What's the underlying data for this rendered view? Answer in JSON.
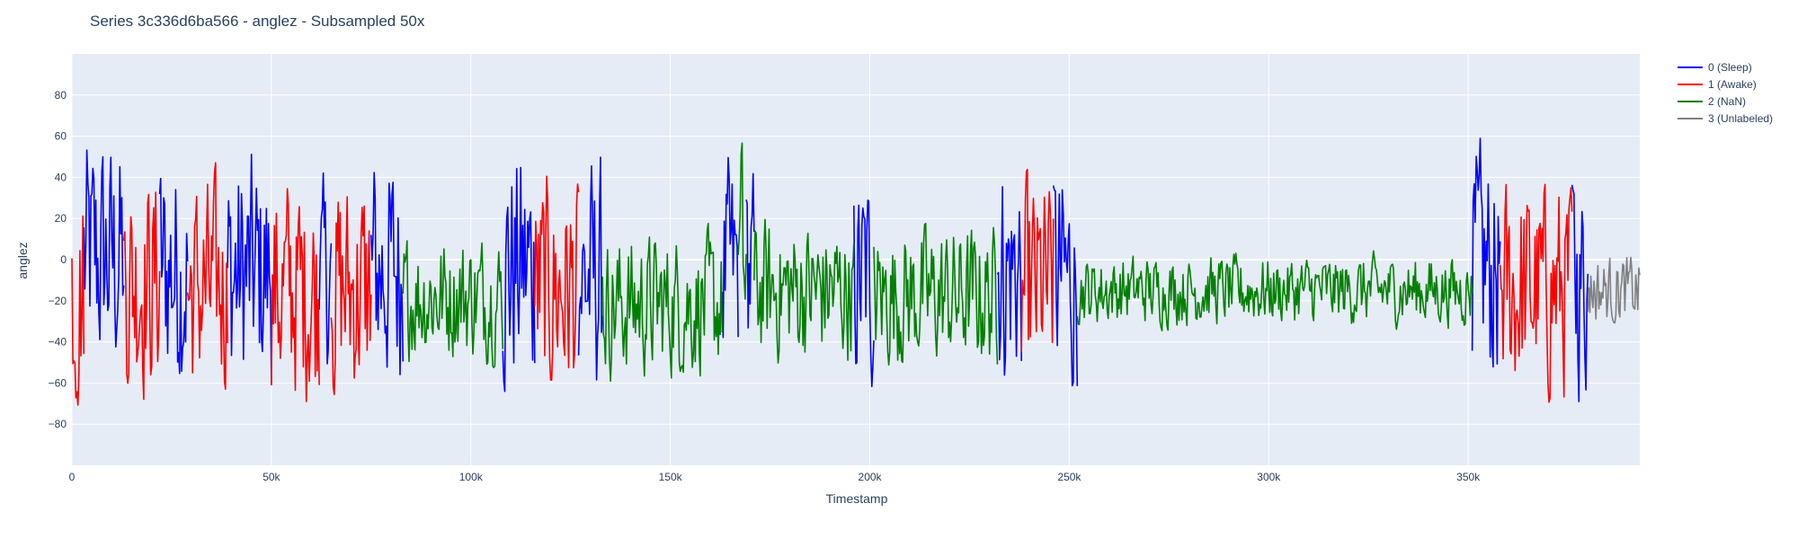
{
  "chart_data": {
    "type": "line",
    "title": "Series 3c336d6ba566 - anglez - Subsampled 50x",
    "xlabel": "Timestamp",
    "ylabel": "anglez",
    "xlim": [
      0,
      393000
    ],
    "ylim": [
      -100,
      100
    ],
    "x_ticks": [
      0,
      50000,
      100000,
      150000,
      200000,
      250000,
      300000,
      350000
    ],
    "x_tick_labels": [
      "0",
      "50k",
      "100k",
      "150k",
      "200k",
      "250k",
      "300k",
      "350k"
    ],
    "y_ticks": [
      -80,
      -60,
      -40,
      -20,
      0,
      20,
      40,
      60,
      80
    ],
    "y_tick_labels": [
      "−80",
      "−60",
      "−40",
      "−20",
      "0",
      "20",
      "40",
      "60",
      "80"
    ],
    "grid": true,
    "legend_position": "top-right",
    "subsample_step": 250,
    "series": [
      {
        "name": "0 (Sleep)",
        "color": "#0000ff",
        "segments": [
          {
            "x_start": 3000,
            "x_end": 13000,
            "mean": 0,
            "amp": 78
          },
          {
            "x_start": 22000,
            "x_end": 29000,
            "mean": -5,
            "amp": 76
          },
          {
            "x_start": 39000,
            "x_end": 50000,
            "mean": -8,
            "amp": 78
          },
          {
            "x_start": 62000,
            "x_end": 65000,
            "mean": -10,
            "amp": 62
          },
          {
            "x_start": 75000,
            "x_end": 83000,
            "mean": -5,
            "amp": 76
          },
          {
            "x_start": 108000,
            "x_end": 116000,
            "mean": -5,
            "amp": 82
          },
          {
            "x_start": 127000,
            "x_end": 133000,
            "mean": -10,
            "amp": 76
          },
          {
            "x_start": 163000,
            "x_end": 167000,
            "mean": -5,
            "amp": 68
          },
          {
            "x_start": 169000,
            "x_end": 171000,
            "mean": -5,
            "amp": 64
          },
          {
            "x_start": 196000,
            "x_end": 201000,
            "mean": -10,
            "amp": 72
          },
          {
            "x_start": 232000,
            "x_end": 238000,
            "mean": -5,
            "amp": 76
          },
          {
            "x_start": 246000,
            "x_end": 252000,
            "mean": -10,
            "amp": 72
          },
          {
            "x_start": 351000,
            "x_end": 358000,
            "mean": -5,
            "amp": 76
          },
          {
            "x_start": 376000,
            "x_end": 380000,
            "mean": -10,
            "amp": 74
          }
        ]
      },
      {
        "name": "1 (Awake)",
        "color": "#ff0000",
        "segments": [
          {
            "x_start": 0,
            "x_end": 3000,
            "mean": -15,
            "amp": 75
          },
          {
            "x_start": 13000,
            "x_end": 22000,
            "mean": -10,
            "amp": 72
          },
          {
            "x_start": 29000,
            "x_end": 39000,
            "mean": -15,
            "amp": 70
          },
          {
            "x_start": 50000,
            "x_end": 62000,
            "mean": -15,
            "amp": 72
          },
          {
            "x_start": 65000,
            "x_end": 75000,
            "mean": -15,
            "amp": 72
          },
          {
            "x_start": 116000,
            "x_end": 127000,
            "mean": -15,
            "amp": 72
          },
          {
            "x_start": 238000,
            "x_end": 246000,
            "mean": -15,
            "amp": 70
          },
          {
            "x_start": 358000,
            "x_end": 376000,
            "mean": -15,
            "amp": 70
          }
        ]
      },
      {
        "name": "2 (NaN)",
        "color": "#008000",
        "segments": [
          {
            "x_start": 83000,
            "x_end": 108000,
            "mean": -18,
            "amp": 40
          },
          {
            "x_start": 133000,
            "x_end": 163000,
            "mean": -22,
            "amp": 45
          },
          {
            "x_start": 167000,
            "x_end": 169000,
            "mean": -5,
            "amp": 82
          },
          {
            "x_start": 171000,
            "x_end": 196000,
            "mean": -15,
            "amp": 45
          },
          {
            "x_start": 201000,
            "x_end": 232000,
            "mean": -18,
            "amp": 45
          },
          {
            "x_start": 252000,
            "x_end": 351000,
            "mean": -15,
            "amp": 22
          }
        ]
      },
      {
        "name": "3 (Unlabeled)",
        "color": "#808080",
        "segments": [
          {
            "x_start": 380000,
            "x_end": 393000,
            "mean": -15,
            "amp": 22
          }
        ]
      }
    ]
  }
}
